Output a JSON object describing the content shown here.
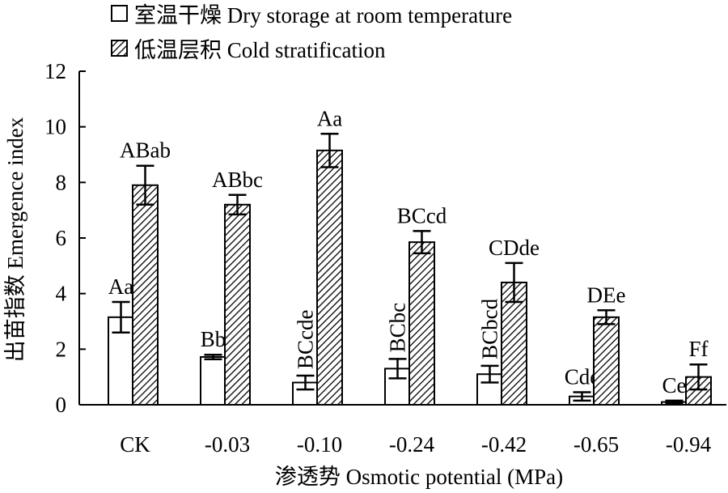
{
  "chart_data": {
    "type": "bar",
    "xlabel": "渗透势 Osmotic potential (MPa)",
    "ylabel": "出苗指数 Emergence index",
    "ylim": [
      0,
      12
    ],
    "yticks": [
      0,
      2,
      4,
      6,
      8,
      10,
      12
    ],
    "grid": false,
    "legend_position": "top-left",
    "categories": [
      "CK",
      "-0.03",
      "-0.10",
      "-0.24",
      "-0.42",
      "-0.65",
      "-0.94"
    ],
    "series": [
      {
        "name": "室温干燥 Dry storage at room temperature",
        "pattern": "open",
        "values": [
          3.15,
          1.72,
          0.8,
          1.3,
          1.1,
          0.3,
          0.1
        ],
        "errors": [
          0.55,
          0.08,
          0.25,
          0.35,
          0.3,
          0.15,
          0.05
        ],
        "labels": [
          "Aa",
          "Bb",
          "BCcde",
          "BCbc",
          "BCbcd",
          "Cde",
          "Ce"
        ],
        "label_vertical": [
          false,
          false,
          true,
          true,
          true,
          false,
          false
        ]
      },
      {
        "name": "低温层积 Cold stratification",
        "pattern": "hatched",
        "values": [
          7.9,
          7.2,
          9.15,
          5.85,
          4.4,
          3.15,
          1.0
        ],
        "errors": [
          0.7,
          0.35,
          0.6,
          0.4,
          0.7,
          0.25,
          0.45
        ],
        "labels": [
          "ABab",
          "ABbc",
          "Aa",
          "BCcd",
          "CDde",
          "DEe",
          "Ff"
        ],
        "label_vertical": [
          false,
          false,
          false,
          false,
          false,
          false,
          false
        ]
      }
    ]
  },
  "colors": {
    "ink": "#000000",
    "background": "#ffffff"
  }
}
